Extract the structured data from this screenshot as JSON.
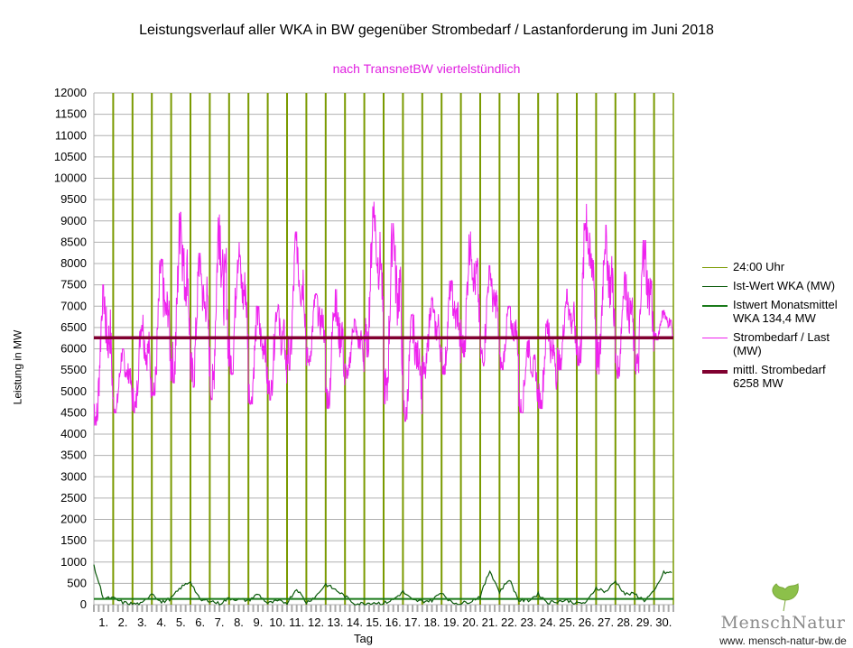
{
  "chart_data": {
    "type": "line",
    "title": "Leistungsverlauf aller WKA in BW gegenüber  Strombedarf / Lastanforderung im Juni 2018",
    "subtitle": "nach TransnetBW viertelstündlich",
    "xlabel": "Tag",
    "ylabel": "Leistung in MW",
    "ylim": [
      0,
      12000
    ],
    "ytick_step": 500,
    "yticks": [
      "0",
      "500",
      "1000",
      "1500",
      "2000",
      "2500",
      "3000",
      "3500",
      "4000",
      "4500",
      "5000",
      "5500",
      "6000",
      "6500",
      "7000",
      "7500",
      "8000",
      "8500",
      "9000",
      "9500",
      "10000",
      "10500",
      "11000",
      "11500",
      "12000"
    ],
    "xticks": [
      "1.",
      "2.",
      "3.",
      "4.",
      "5.",
      "6.",
      "7.",
      "8.",
      "9.",
      "10.",
      "11.",
      "12.",
      "13.",
      "14.",
      "15.",
      "16.",
      "17.",
      "18.",
      "19.",
      "20.",
      "21.",
      "22.",
      "23.",
      "24.",
      "25.",
      "26.",
      "27.",
      "28.",
      "29.",
      "30."
    ],
    "grid": true,
    "legend_position": "right",
    "legend": [
      {
        "label": "24:00 Uhr",
        "color": "#7a9a00"
      },
      {
        "label": "Ist-Wert WKA (MW)",
        "color": "#0b5a0b"
      },
      {
        "label": "Istwert Monatsmittel\nWKA 134,4 MW",
        "color": "#1a7a1a"
      },
      {
        "label": "Strombedarf / Last\n(MW)",
        "color": "#ee22ee"
      },
      {
        "label": "mittl. Strombedarf\n6258 MW",
        "color": "#800030"
      }
    ],
    "series": [
      {
        "name": "Strombedarf / Last (MW)",
        "color": "#ee22ee",
        "daily_max": [
          7500,
          6000,
          6800,
          8100,
          9200,
          8250,
          9150,
          8500,
          7000,
          7100,
          8750,
          7300,
          7400,
          6700,
          9450,
          8950,
          6800,
          7200,
          7600,
          8750,
          7950,
          7000,
          6200,
          6700,
          7400,
          9400,
          8900,
          7800,
          8550,
          6900
        ],
        "daily_min": [
          4200,
          4500,
          4500,
          4900,
          5200,
          5100,
          4800,
          5400,
          4700,
          4800,
          5500,
          5600,
          4600,
          5300,
          5800,
          4700,
          4300,
          5300,
          5400,
          5800,
          5600,
          5500,
          4500,
          4600,
          5500,
          5600,
          5400,
          5300,
          5400,
          6200
        ]
      },
      {
        "name": "Ist-Wert WKA (MW)",
        "color": "#0b5a0b",
        "half_day_values": [
          900,
          150,
          150,
          50,
          20,
          20,
          280,
          50,
          150,
          400,
          550,
          100,
          100,
          20,
          150,
          120,
          100,
          250,
          30,
          80,
          50,
          380,
          50,
          200,
          480,
          350,
          200,
          20,
          30,
          50,
          30,
          120,
          300,
          100,
          80,
          100,
          300,
          50,
          30,
          80,
          200,
          800,
          300,
          600,
          100,
          100,
          250,
          50,
          80,
          100,
          30,
          50,
          400,
          300,
          550,
          250,
          250,
          100,
          300,
          750
        ]
      },
      {
        "name": "Istwert Monatsmittel WKA",
        "value": 134.4,
        "color": "#1a7a1a"
      },
      {
        "name": "mittl. Strombedarf",
        "value": 6258,
        "color": "#800030"
      }
    ]
  },
  "logo": {
    "name": "MenschNatur",
    "url": "www. mensch-natur-bw.de"
  }
}
